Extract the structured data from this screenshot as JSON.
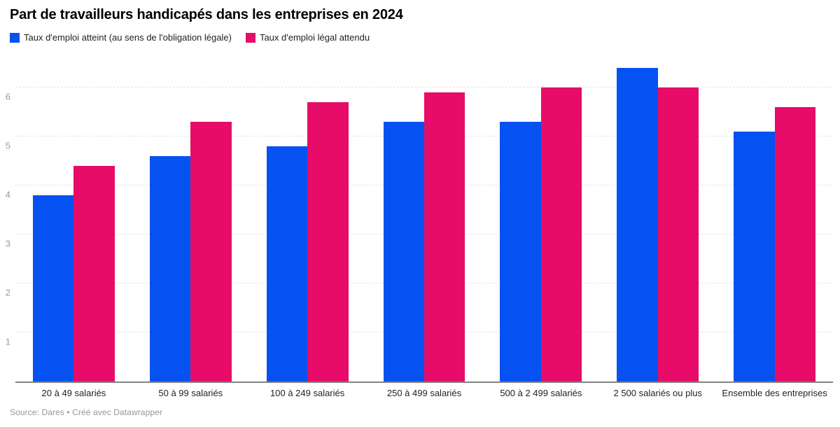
{
  "chart_data": {
    "type": "bar",
    "title": "Part de travailleurs handicapés dans les entreprises en 2024",
    "categories": [
      "20 à 49 salariés",
      "50 à 99 salariés",
      "100 à 249 salariés",
      "250 à 499 salariés",
      "500 à 2 499 salariés",
      "2 500 salariés ou plus",
      "Ensemble des entreprises"
    ],
    "series": [
      {
        "name": "Taux d'emploi atteint (au sens de l'obligation légale)",
        "color": "#0552f0",
        "values": [
          3.8,
          4.6,
          4.8,
          5.3,
          5.3,
          6.4,
          5.1
        ]
      },
      {
        "name": "Taux d'emploi légal attendu",
        "color": "#e60c68",
        "values": [
          4.4,
          5.3,
          5.7,
          5.9,
          6.0,
          6.0,
          5.6
        ]
      }
    ],
    "xlabel": "",
    "ylabel": "",
    "ylim": [
      0,
      6.5
    ],
    "yticks": [
      1,
      2,
      3,
      4,
      5,
      6
    ],
    "grid": "horizontal-dashed",
    "legend_position": "top-left",
    "baseline_color": "#848484"
  },
  "footer": {
    "text": "Source: Dares • Créé avec Datawrapper"
  }
}
